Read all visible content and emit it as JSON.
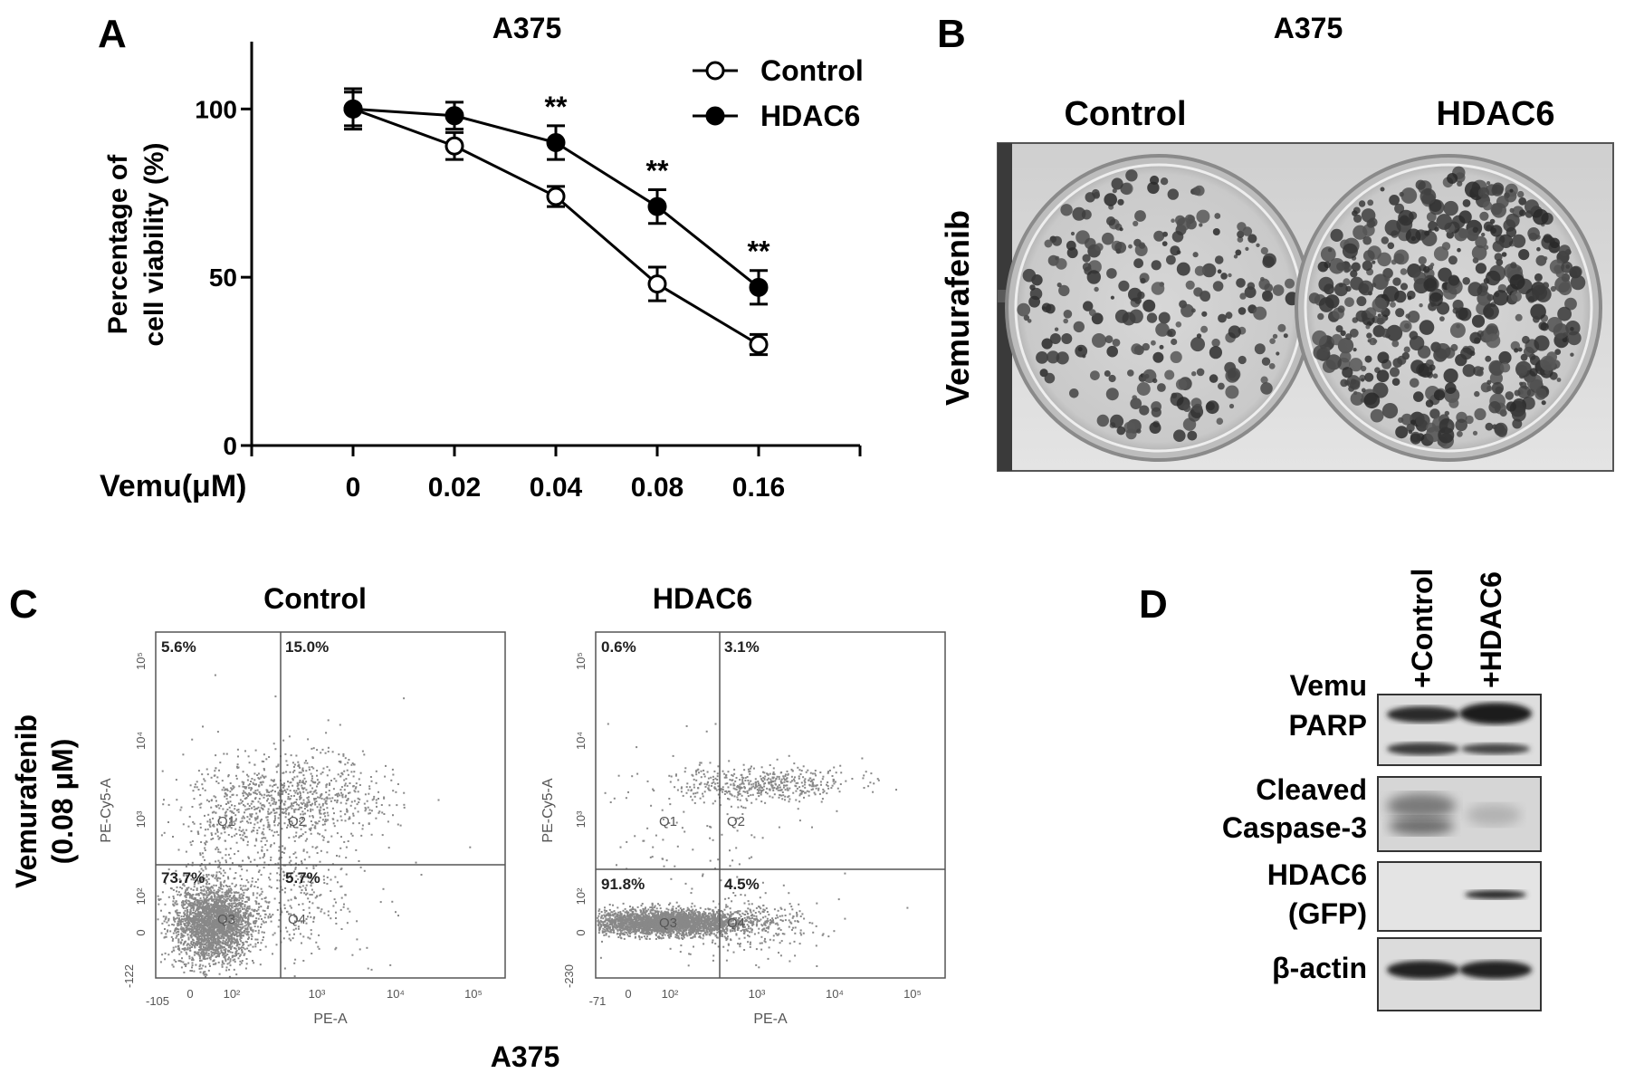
{
  "panel_a": {
    "letter": "A",
    "title": "A375",
    "ylabel_line1": "Percentage of",
    "ylabel_line2": "cell viability (%)",
    "xlabel": "Vemu(μM)",
    "y_ticks": [
      "0",
      "50",
      "100"
    ],
    "significance": "**",
    "chart_data": {
      "type": "line",
      "title": "A375",
      "xlabel": "Vemu(μM)",
      "ylabel": "Percentage of cell viability (%)",
      "categories": [
        "0",
        "0.02",
        "0.04",
        "0.08",
        "0.16"
      ],
      "ylim": [
        0,
        120
      ],
      "legend_position": "top-right",
      "series": [
        {
          "name": "Control",
          "marker": "open-circle",
          "values": [
            100,
            89,
            74,
            48,
            30
          ],
          "error": [
            5,
            4,
            3,
            5,
            3
          ]
        },
        {
          "name": "HDAC6",
          "marker": "filled-circle",
          "values": [
            100,
            98,
            90,
            71,
            47
          ],
          "error": [
            6,
            4,
            5,
            5,
            5
          ]
        }
      ],
      "significant_categories": [
        "0.04",
        "0.08",
        "0.16"
      ]
    }
  },
  "panel_b": {
    "letter": "B",
    "title": "A375",
    "col_labels": [
      "Control",
      "HDAC6"
    ],
    "row_label": "Vemurafenib"
  },
  "panel_c": {
    "letter": "C",
    "row_label_line1": "Vemurafenib",
    "row_label_line2": "(0.08 μM)",
    "bottom_label": "A375",
    "y_axis_title": "PE-Cy5-A",
    "x_axis_title": "PE-A",
    "plots": [
      {
        "title": "Control",
        "quadrants": {
          "q1": "5.6%",
          "q2": "15.0%",
          "q3": "73.7%",
          "q4": "5.7%"
        },
        "gate_labels": [
          "Q1",
          "Q2",
          "Q3",
          "Q4"
        ],
        "x_ticks": [
          "-105",
          "0",
          "10²",
          "10³",
          "10⁴",
          "10⁵"
        ],
        "y_ticks": [
          "-122",
          "0",
          "10²",
          "10³",
          "10⁴",
          "10⁵"
        ]
      },
      {
        "title": "HDAC6",
        "quadrants": {
          "q1": "0.6%",
          "q2": "3.1%",
          "q3": "91.8%",
          "q4": "4.5%"
        },
        "gate_labels": [
          "Q1",
          "Q2",
          "Q3",
          "Q4"
        ],
        "x_ticks": [
          "-71",
          "0",
          "10²",
          "10³",
          "10⁴",
          "10⁵"
        ],
        "y_ticks": [
          "-230",
          "0",
          "10²",
          "10³",
          "10⁴",
          "10⁵"
        ]
      }
    ]
  },
  "panel_d": {
    "letter": "D",
    "lanes": [
      "+Control",
      "+HDAC6"
    ],
    "rows": [
      {
        "label_line1": "Vemu",
        "label_line2": "PARP"
      },
      {
        "label_line1": "Cleaved",
        "label_line2": "Caspase-3"
      },
      {
        "label_line1": "HDAC6",
        "label_line2": "(GFP)"
      },
      {
        "label_line1": "β-actin",
        "label_line2": ""
      }
    ]
  }
}
